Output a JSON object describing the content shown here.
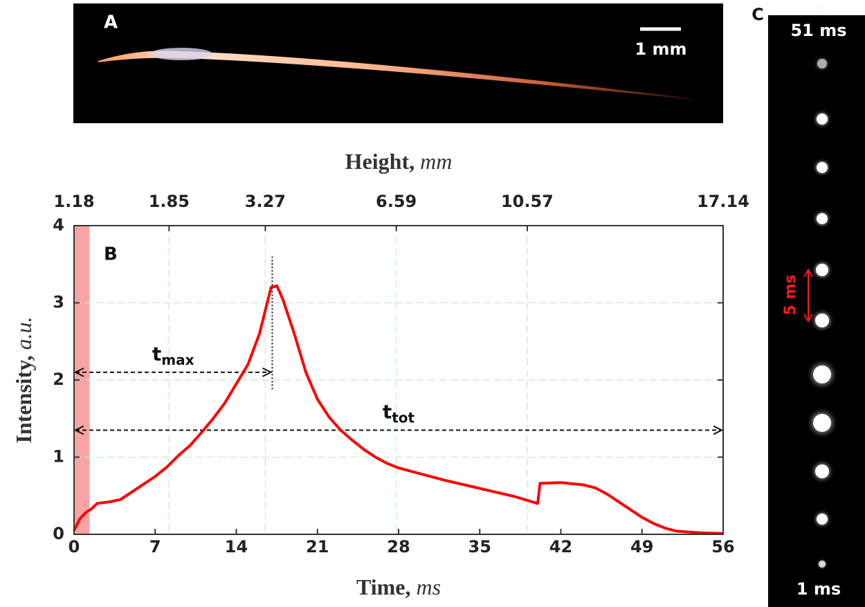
{
  "panel_a": {
    "label": "A",
    "scale": "1 mm"
  },
  "panel_c": {
    "label": "C",
    "top": "51 ms",
    "bottom": "1 ms",
    "interval": "5 ms"
  },
  "chart_data": {
    "type": "line",
    "panel": "B",
    "x": [
      0,
      0.5,
      1,
      1.5,
      2,
      3,
      4,
      5,
      6,
      7,
      8,
      9,
      10,
      11,
      12,
      13,
      14,
      15,
      16,
      16.5,
      17,
      17.5,
      18,
      19,
      20,
      21,
      22,
      23,
      24,
      25,
      26,
      27,
      28,
      30,
      32,
      34,
      36,
      38,
      40,
      40.2,
      42,
      44,
      45,
      46,
      47,
      48,
      49,
      50,
      51,
      52,
      54,
      56
    ],
    "values": [
      0.05,
      0.2,
      0.28,
      0.33,
      0.4,
      0.42,
      0.45,
      0.55,
      0.65,
      0.75,
      0.87,
      1.02,
      1.15,
      1.32,
      1.5,
      1.7,
      1.95,
      2.2,
      2.6,
      2.9,
      3.2,
      3.22,
      3.05,
      2.6,
      2.1,
      1.75,
      1.52,
      1.35,
      1.22,
      1.1,
      1.0,
      0.92,
      0.86,
      0.78,
      0.7,
      0.63,
      0.56,
      0.49,
      0.4,
      0.66,
      0.67,
      0.64,
      0.6,
      0.52,
      0.42,
      0.32,
      0.22,
      0.14,
      0.08,
      0.04,
      0.02,
      0.01
    ],
    "color": "#ff0000",
    "xlim": [
      0,
      56
    ],
    "xticks": [
      0,
      7,
      14,
      21,
      28,
      35,
      42,
      49,
      56
    ],
    "ylim": [
      0,
      4
    ],
    "yticks": [
      0,
      1,
      2,
      3,
      4
    ],
    "xlabel": "Time, ",
    "xlabel_unit": "ms",
    "ylabel": "Intensity, ",
    "ylabel_unit": "a.u.",
    "x2label": "Height, ",
    "x2label_unit": "mm",
    "x2ticks": [
      {
        "value": 0,
        "label": "1.18"
      },
      {
        "value": 8.2,
        "label": "1.85"
      },
      {
        "value": 16.5,
        "label": "3.27"
      },
      {
        "value": 27.8,
        "label": "6.59"
      },
      {
        "value": 39.1,
        "label": "10.57"
      },
      {
        "value": 56,
        "label": "17.14"
      }
    ],
    "grid": true,
    "grid_color": "#c8f0c8",
    "shade": {
      "x": [
        0,
        1.35
      ],
      "color": "#f8a4a4"
    },
    "marker": {
      "x": 17.1,
      "y": [
        1.88,
        3.6
      ]
    },
    "annotations": [
      {
        "text": "t",
        "sub": "max",
        "x": [
          0,
          17.1
        ],
        "y": 2.1
      },
      {
        "text": "t",
        "sub": "tot",
        "x": [
          0,
          56
        ],
        "y": 1.35
      }
    ]
  }
}
